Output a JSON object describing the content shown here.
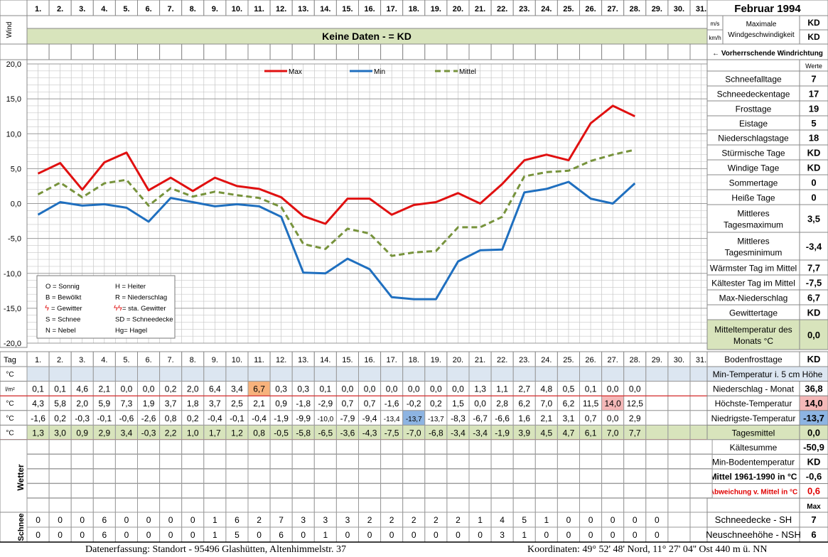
{
  "title": "Februar 1994",
  "days": [
    "1.",
    "2.",
    "3.",
    "4.",
    "5.",
    "6.",
    "7.",
    "8.",
    "9.",
    "10.",
    "11.",
    "12.",
    "13.",
    "14.",
    "15.",
    "16.",
    "17.",
    "18.",
    "19.",
    "20.",
    "21.",
    "22.",
    "23.",
    "24.",
    "25.",
    "26.",
    "27.",
    "28.",
    "29.",
    "30.",
    "31."
  ],
  "wind": {
    "side_label": "Wind",
    "unit_ms": "m/s",
    "unit_kmh": "km/h",
    "max_label": "Maximale Windgeschwindigkeit",
    "max_ms": "KD",
    "max_kmh": "KD",
    "no_data": "Keine Daten -  = KD",
    "direction_label": "← Vorherrschende Windrichtung"
  },
  "legend_box": {
    "rows": [
      [
        "O = Sonnig",
        "H = Heiter"
      ],
      [
        "B = Bewölkt",
        "R = Niederschlag"
      ],
      [
        "= Gewitter",
        "= sta. Gewitter"
      ],
      [
        "S = Schnee",
        "SD = Schneedecke"
      ],
      [
        "N = Nebel",
        "Hg= Hagel"
      ]
    ]
  },
  "stats": {
    "werte_label": "Werte",
    "rows": [
      {
        "label": "Schneefalltage",
        "value": "7"
      },
      {
        "label": "Schneedeckentage",
        "value": "17"
      },
      {
        "label": "Frosttage",
        "value": "19"
      },
      {
        "label": "Eistage",
        "value": "5"
      },
      {
        "label": "Niederschlagstage",
        "value": "18"
      },
      {
        "label": "Stürmische Tage",
        "value": "KD"
      },
      {
        "label": "Windige Tage",
        "value": "KD"
      },
      {
        "label": "Sommertage",
        "value": "0"
      },
      {
        "label": "Heiße Tage",
        "value": "0"
      },
      {
        "label": "Mittleres Tagesmaximum",
        "value": "3,5"
      },
      {
        "label": "Mittleres Tagesminimum",
        "value": "-3,4"
      },
      {
        "label": "Wärmster Tag im Mittel",
        "value": "7,7"
      },
      {
        "label": "Kältester Tag im Mittel",
        "value": "-7,5"
      },
      {
        "label": "Max-Niederschlag",
        "value": "6,7"
      },
      {
        "label": "Gewittertage",
        "value": "KD"
      },
      {
        "label": "Mitteltemperatur des Monats °C",
        "value": "0,0"
      },
      {
        "label": "Bodenfrosttage",
        "value": "KD"
      }
    ]
  },
  "table": {
    "tag_label": "Tag",
    "row_units": [
      "°C",
      "l/m²",
      "°C",
      "°C",
      "°C"
    ],
    "precip": [
      "0,1",
      "0,1",
      "4,6",
      "2,1",
      "0,0",
      "0,0",
      "0,2",
      "2,0",
      "6,4",
      "3,4",
      "6,7",
      "0,3",
      "0,3",
      "0,1",
      "0,0",
      "0,0",
      "0,0",
      "0,0",
      "0,0",
      "0,0",
      "1,3",
      "1,1",
      "2,7",
      "4,8",
      "0,5",
      "0,1",
      "0,0",
      "0,0"
    ],
    "tmax": [
      "4,3",
      "5,8",
      "2,0",
      "5,9",
      "7,3",
      "1,9",
      "3,7",
      "1,8",
      "3,7",
      "2,5",
      "2,1",
      "0,9",
      "-1,8",
      "-2,9",
      "0,7",
      "0,7",
      "-1,6",
      "-0,2",
      "0,2",
      "1,5",
      "0,0",
      "2,8",
      "6,2",
      "7,0",
      "6,2",
      "11,5",
      "14,0",
      "12,5"
    ],
    "tmin": [
      "-1,6",
      "0,2",
      "-0,3",
      "-0,1",
      "-0,6",
      "-2,6",
      "0,8",
      "0,2",
      "-0,4",
      "-0,1",
      "-0,4",
      "-1,9",
      "-9,9",
      "-10,0",
      "-7,9",
      "-9,4",
      "-13,4",
      "-13,7",
      "-13,7",
      "-8,3",
      "-6,7",
      "-6,6",
      "1,6",
      "2,1",
      "3,1",
      "0,7",
      "0,0",
      "2,9"
    ],
    "tmean": [
      "1,3",
      "3,0",
      "0,9",
      "2,9",
      "3,4",
      "-0,3",
      "2,2",
      "1,0",
      "1,7",
      "1,2",
      "0,8",
      "-0,5",
      "-5,8",
      "-6,5",
      "-3,6",
      "-4,3",
      "-7,5",
      "-7,0",
      "-6,8",
      "-3,4",
      "-3,4",
      "-1,9",
      "3,9",
      "4,5",
      "4,7",
      "6,1",
      "7,0",
      "7,7"
    ],
    "wetter_label": "Wetter",
    "schnee_label": "Schnee",
    "snow_sh": [
      "0",
      "0",
      "0",
      "6",
      "0",
      "0",
      "0",
      "0",
      "1",
      "6",
      "2",
      "7",
      "3",
      "3",
      "3",
      "2",
      "2",
      "2",
      "2",
      "2",
      "1",
      "4",
      "5",
      "1",
      "0",
      "0",
      "0",
      "0",
      "0"
    ],
    "snow_nsh": [
      "0",
      "0",
      "0",
      "6",
      "0",
      "0",
      "0",
      "0",
      "1",
      "5",
      "0",
      "6",
      "0",
      "1",
      "0",
      "0",
      "0",
      "0",
      "0",
      "0",
      "0",
      "3",
      "1",
      "0",
      "0",
      "0",
      "0",
      "0",
      "0"
    ]
  },
  "right_table": {
    "min5cm_label": "Min-Temperatur i. 5 cm Höhe",
    "rows": [
      {
        "label": "Niederschlag - Monat",
        "value": "36,8"
      },
      {
        "label": "Höchste-Temperatur",
        "value": "14,0"
      },
      {
        "label": "Niedrigste-Temperatur",
        "value": "-13,7"
      },
      {
        "label": "Tagesmittel",
        "value": "0,0"
      },
      {
        "label": "Kältesumme",
        "value": "-50,9"
      },
      {
        "label": "Min-Bodentemperatur",
        "value": "KD"
      },
      {
        "label": "Mittel 1961-1990 in °C",
        "value": "-0,6"
      },
      {
        "label": "Abweichung v. Mittel in °C",
        "value": "0,6"
      }
    ],
    "max_label": "Max",
    "snow_rows": [
      {
        "label": "Schneedecke -  SH",
        "value": "7"
      },
      {
        "label": "Neuschneehöhe - NSH",
        "value": "6"
      }
    ]
  },
  "footer": {
    "left": "Datenerfassung:  Standort -  95496  Glashütten, Altenhimmelstr. 37",
    "right": "Koordinaten:  49° 52' 48' Nord,  11° 27' 04'' Ost   440 m ü. NN"
  },
  "colors": {
    "max": "#e01010",
    "min": "#1f6fbf",
    "mittel": "#77933c",
    "green_band": "#d8e4bc",
    "blue_band": "#dce6f1",
    "hi_orange": "#f7b27c",
    "hi_pink": "#f4b8b8",
    "hi_blue": "#8db4e2",
    "anomaly_red": "#e00000"
  },
  "chart_data": {
    "type": "line",
    "categories": [
      "1.",
      "2.",
      "3.",
      "4.",
      "5.",
      "6.",
      "7.",
      "8.",
      "9.",
      "10.",
      "11.",
      "12.",
      "13.",
      "14.",
      "15.",
      "16.",
      "17.",
      "18.",
      "19.",
      "20.",
      "21.",
      "22.",
      "23.",
      "24.",
      "25.",
      "26.",
      "27.",
      "28."
    ],
    "series": [
      {
        "name": "Max",
        "values": [
          4.3,
          5.8,
          2.0,
          5.9,
          7.3,
          1.9,
          3.7,
          1.8,
          3.7,
          2.5,
          2.1,
          0.9,
          -1.8,
          -2.9,
          0.7,
          0.7,
          -1.6,
          -0.2,
          0.2,
          1.5,
          0.0,
          2.8,
          6.2,
          7.0,
          6.2,
          11.5,
          14.0,
          12.5
        ]
      },
      {
        "name": "Min",
        "values": [
          -1.6,
          0.2,
          -0.3,
          -0.1,
          -0.6,
          -2.6,
          0.8,
          0.2,
          -0.4,
          -0.1,
          -0.4,
          -1.9,
          -9.9,
          -10.0,
          -7.9,
          -9.4,
          -13.4,
          -13.7,
          -13.7,
          -8.3,
          -6.7,
          -6.6,
          1.6,
          2.1,
          3.1,
          0.7,
          0.0,
          2.9
        ]
      },
      {
        "name": "Mittel",
        "values": [
          1.3,
          3.0,
          0.9,
          2.9,
          3.4,
          -0.3,
          2.2,
          1.0,
          1.7,
          1.2,
          0.8,
          -0.5,
          -5.8,
          -6.5,
          -3.6,
          -4.3,
          -7.5,
          -7.0,
          -6.8,
          -3.4,
          -3.4,
          -1.9,
          3.9,
          4.5,
          4.7,
          6.1,
          7.0,
          7.7
        ]
      }
    ],
    "yticks": [
      "20,0",
      "15,0",
      "10,0",
      "5,0",
      "0,0",
      "-5,0",
      "-10,0",
      "-15,0",
      "-20,0"
    ],
    "ylim": [
      -20,
      20
    ],
    "grid": true,
    "legend": "top"
  }
}
